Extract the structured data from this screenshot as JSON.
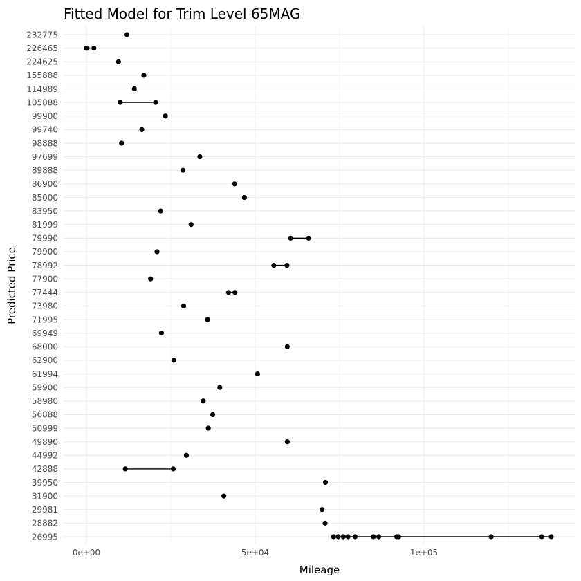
{
  "chart_data": {
    "type": "scatter",
    "title": "Fitted Model for Trim Level 65MAG",
    "xlabel": "Mileage",
    "ylabel": "Predicted Price",
    "x_ticks": [
      {
        "value": 0,
        "label": "0e+00"
      },
      {
        "value": 50000,
        "label": "5e+04"
      },
      {
        "value": 100000,
        "label": "1e+05"
      }
    ],
    "xlim": [
      -4000,
      142000
    ],
    "grid": true,
    "point_color": "#000000",
    "categories": [
      "26995",
      "28882",
      "29981",
      "31900",
      "39950",
      "42888",
      "44992",
      "49890",
      "50999",
      "56888",
      "58980",
      "59900",
      "61994",
      "62900",
      "68000",
      "69949",
      "71995",
      "73980",
      "77444",
      "77900",
      "78992",
      "79900",
      "79990",
      "81999",
      "83950",
      "85000",
      "86900",
      "89888",
      "97699",
      "98888",
      "99740",
      "99900",
      "105888",
      "114989",
      "155888",
      "224625",
      "226465",
      "232775"
    ],
    "series": [
      {
        "category": "232775",
        "mileage": [
          12000
        ]
      },
      {
        "category": "226465",
        "mileage": [
          0,
          100,
          200,
          2200
        ]
      },
      {
        "category": "224625",
        "mileage": [
          9500
        ]
      },
      {
        "category": "155888",
        "mileage": [
          17000
        ]
      },
      {
        "category": "114989",
        "mileage": [
          14200
        ]
      },
      {
        "category": "105888",
        "mileage": [
          10000,
          20500
        ]
      },
      {
        "category": "99900",
        "mileage": [
          23400
        ]
      },
      {
        "category": "99740",
        "mileage": [
          16400
        ]
      },
      {
        "category": "98888",
        "mileage": [
          10400
        ]
      },
      {
        "category": "97699",
        "mileage": [
          33600
        ]
      },
      {
        "category": "89888",
        "mileage": [
          28600
        ]
      },
      {
        "category": "86900",
        "mileage": [
          43900
        ]
      },
      {
        "category": "85000",
        "mileage": [
          46800
        ]
      },
      {
        "category": "83950",
        "mileage": [
          22000
        ]
      },
      {
        "category": "81999",
        "mileage": [
          31000
        ]
      },
      {
        "category": "79990",
        "mileage": [
          60500,
          65800
        ]
      },
      {
        "category": "79900",
        "mileage": [
          20900
        ]
      },
      {
        "category": "78992",
        "mileage": [
          55500,
          59400
        ]
      },
      {
        "category": "77900",
        "mileage": [
          19000
        ]
      },
      {
        "category": "77444",
        "mileage": [
          42100,
          44000
        ]
      },
      {
        "category": "73980",
        "mileage": [
          28800
        ]
      },
      {
        "category": "71995",
        "mileage": [
          35900
        ]
      },
      {
        "category": "69949",
        "mileage": [
          22200
        ]
      },
      {
        "category": "68000",
        "mileage": [
          59500
        ]
      },
      {
        "category": "62900",
        "mileage": [
          25900
        ]
      },
      {
        "category": "61994",
        "mileage": [
          50700
        ]
      },
      {
        "category": "59900",
        "mileage": [
          39500
        ]
      },
      {
        "category": "58980",
        "mileage": [
          34600
        ]
      },
      {
        "category": "56888",
        "mileage": [
          37400
        ]
      },
      {
        "category": "50999",
        "mileage": [
          36100
        ]
      },
      {
        "category": "49890",
        "mileage": [
          59500
        ]
      },
      {
        "category": "44992",
        "mileage": [
          29600
        ]
      },
      {
        "category": "42888",
        "mileage": [
          11500,
          25700
        ]
      },
      {
        "category": "39950",
        "mileage": [
          70800
        ]
      },
      {
        "category": "31900",
        "mileage": [
          40700
        ]
      },
      {
        "category": "29981",
        "mileage": [
          69800
        ]
      },
      {
        "category": "28882",
        "mileage": [
          70700
        ]
      },
      {
        "category": "26995",
        "mileage": [
          73200,
          74600,
          76100,
          77500,
          79600,
          85000,
          86600,
          91900,
          92500,
          119900,
          134900,
          137700
        ]
      }
    ]
  }
}
